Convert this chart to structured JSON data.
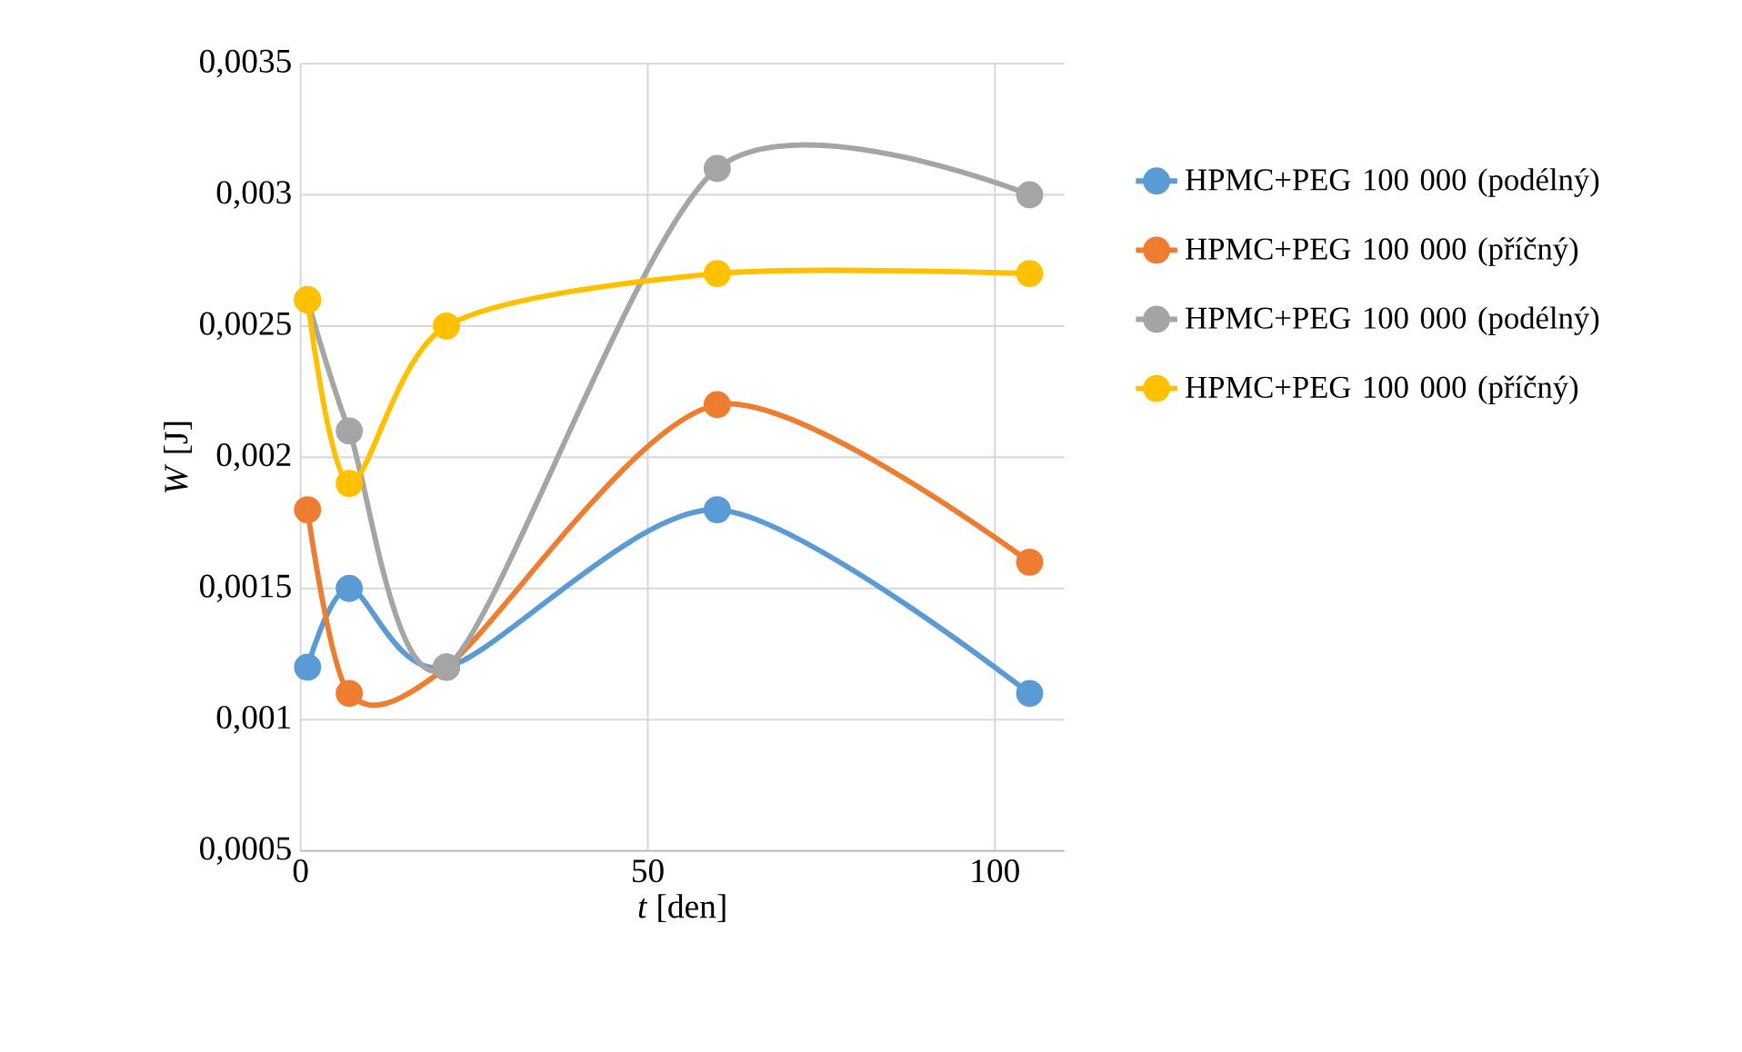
{
  "chart_data": {
    "type": "line",
    "xlabel": "*t* [den]",
    "ylabel": "*W* [J]",
    "x": [
      1,
      7,
      21,
      60,
      105
    ],
    "xlim": [
      0,
      110
    ],
    "xticks": [
      0,
      50,
      100
    ],
    "ylim": [
      0.0005,
      0.0035
    ],
    "yticks": [
      {
        "value": 0.0005,
        "label": "0,0005"
      },
      {
        "value": 0.001,
        "label": "0,001"
      },
      {
        "value": 0.0015,
        "label": "0,0015"
      },
      {
        "value": 0.002,
        "label": "0,002"
      },
      {
        "value": 0.0025,
        "label": "0,0025"
      },
      {
        "value": 0.003,
        "label": "0,003"
      },
      {
        "value": 0.0035,
        "label": "0,0035"
      }
    ],
    "grid": true,
    "legend": "right",
    "marker": "circle",
    "line_style": "solid",
    "series": [
      {
        "name": "HPMC+PEG 100 000 (podélný)",
        "color": "#5b9bd5",
        "values": [
          0.0012,
          0.0015,
          0.0012,
          0.0018,
          0.0011
        ]
      },
      {
        "name": "HPMC+PEG 100 000 (příčný)",
        "color": "#ed7d31",
        "values": [
          0.0018,
          0.0011,
          0.0012,
          0.0022,
          0.0016
        ]
      },
      {
        "name": "HPMC+PEG 100 000 (podélný)",
        "color": "#a5a5a5",
        "values": [
          0.0026,
          0.0021,
          0.0012,
          0.0031,
          0.003
        ]
      },
      {
        "name": "HPMC+PEG 100 000 (příčný)",
        "color": "#ffc000",
        "values": [
          0.0026,
          0.0019,
          0.0025,
          0.0027,
          0.0027
        ]
      }
    ]
  }
}
